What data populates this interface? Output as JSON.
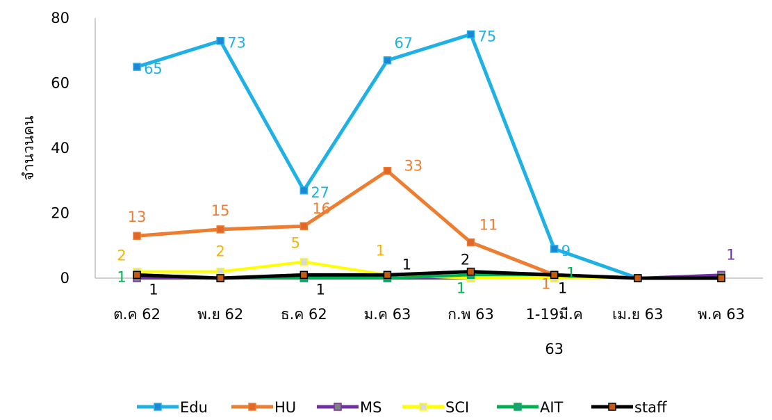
{
  "chart_data": {
    "type": "line",
    "title": "",
    "xlabel": "",
    "ylabel": "จำนวนคน",
    "ylim": [
      0,
      80
    ],
    "yticks": [
      0,
      20,
      40,
      60,
      80
    ],
    "grid": false,
    "legend_position": "bottom",
    "categories": [
      "ต.ค 62",
      "พ.ย 62",
      "ธ.ค 62",
      "ม.ค 63",
      "ก.พ 63",
      "1-19มี.ค 63",
      "เม.ย 63",
      "พ.ค 63"
    ],
    "category_lines": [
      [
        "ต.ค 62"
      ],
      [
        "พ.ย 62"
      ],
      [
        "ธ.ค 62"
      ],
      [
        "ม.ค 63"
      ],
      [
        "ก.พ 63"
      ],
      [
        "1-19มี.ค",
        "63"
      ],
      [
        "เม.ย 63"
      ],
      [
        "พ.ค 63"
      ]
    ],
    "series": [
      {
        "name": "Edu",
        "color": "#1fb1e6",
        "marker_fill": "#1f86d6",
        "values": [
          65,
          73,
          27,
          67,
          75,
          9,
          0,
          0
        ],
        "labels": [
          "65",
          "73",
          "27",
          "67",
          "75",
          "9",
          "",
          ""
        ]
      },
      {
        "name": "HU",
        "color": "#ed7d31",
        "marker_fill": "#e0662a",
        "values": [
          13,
          15,
          16,
          33,
          11,
          1,
          0,
          0
        ],
        "labels": [
          "13",
          "15",
          "16",
          "33",
          "11",
          "1",
          "",
          ""
        ]
      },
      {
        "name": "MS",
        "color": "#7030a0",
        "marker_fill": "#7f7f7f",
        "values": [
          0,
          0,
          0,
          0,
          0,
          0,
          0,
          1
        ],
        "labels": [
          "",
          "",
          "",
          "",
          "",
          "",
          "",
          "1"
        ]
      },
      {
        "name": "SCI",
        "color": "#ffff00",
        "marker_fill": "#d9d9d9",
        "values": [
          2,
          2,
          5,
          1,
          0,
          0,
          0,
          0
        ],
        "labels": [
          "2",
          "2",
          "5",
          "1",
          "",
          "",
          "",
          ""
        ]
      },
      {
        "name": "AIT",
        "color": "#00b050",
        "marker_fill": "#1f9d7a",
        "values": [
          1,
          0,
          0,
          0,
          1,
          1,
          0,
          0
        ],
        "labels": [
          "1",
          "",
          "",
          "",
          "1",
          "1",
          "",
          ""
        ]
      },
      {
        "name": "staff",
        "color": "#000000",
        "marker_fill": "#c55a11",
        "values": [
          1,
          0,
          1,
          1,
          2,
          1,
          0,
          0
        ],
        "labels": [
          "1",
          "",
          "1",
          "1",
          "2",
          "1",
          "",
          ""
        ]
      }
    ]
  }
}
